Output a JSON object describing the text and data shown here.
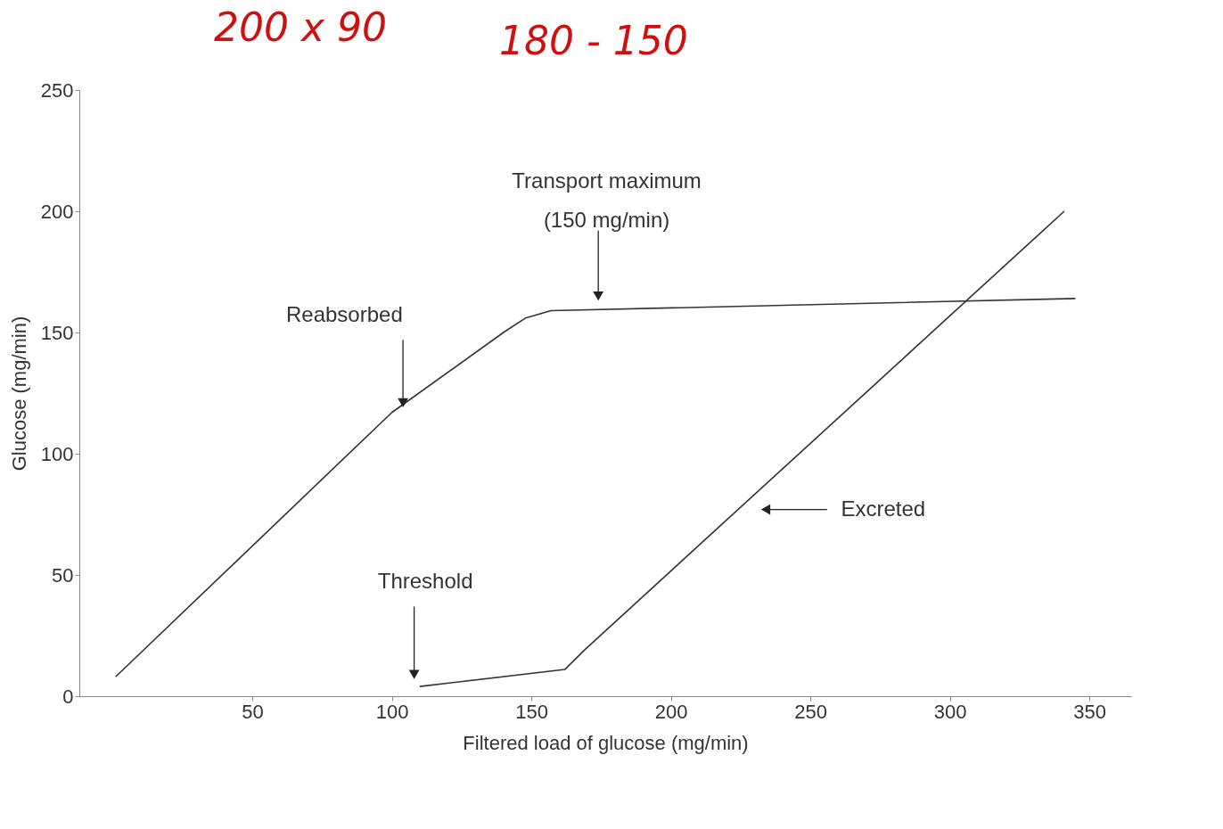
{
  "chart_data": {
    "type": "line",
    "xlabel": "Filtered load of glucose (mg/min)",
    "ylabel": "Glucose (mg/min)",
    "xlim": [
      -12,
      365
    ],
    "xticks": [
      50,
      100,
      150,
      200,
      250,
      300,
      350
    ],
    "ylim": [
      0,
      250
    ],
    "yticks": [
      0,
      50,
      100,
      150,
      200,
      250
    ],
    "grid": false,
    "legend": false,
    "series": [
      {
        "color": "#333333",
        "x": [
          1,
          100,
          140,
          148,
          157,
          345
        ],
        "values": [
          8,
          117,
          150,
          156,
          159,
          164
        ]
      },
      {
        "color": "#333333",
        "x": [
          110,
          162,
          169,
          341
        ],
        "values": [
          4,
          11,
          19,
          200
        ]
      }
    ],
    "annotations": [
      {
        "text": "Reabsorbed",
        "x": 104,
        "y": 121
      },
      {
        "text": "Transport maximum\n(150 mg/min)",
        "x": 174,
        "y": 165
      },
      {
        "text": "Threshold",
        "x": 108,
        "y": 9
      },
      {
        "text": "Excreted",
        "x": 234,
        "y": 77
      },
      "200 x 90",
      "180 - 150"
    ]
  }
}
